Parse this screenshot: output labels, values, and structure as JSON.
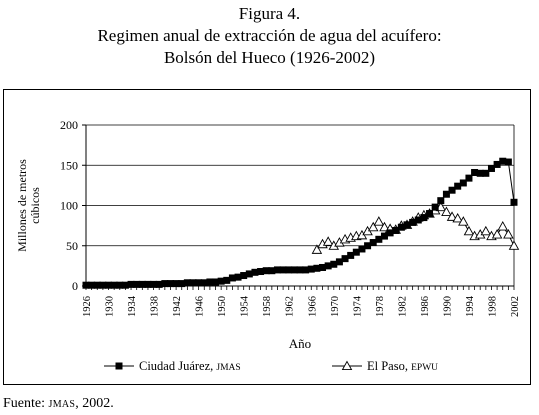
{
  "figure": {
    "label": "Figura 4.",
    "title_line1": "Regimen anual de extracción de agua del acuífero:",
    "title_line2": "Bolsón del Hueco (1926-2002)"
  },
  "source": {
    "prefix": "Fuente: ",
    "org": "JMAS",
    "suffix": ", 2002."
  },
  "chart_data": {
    "type": "line",
    "xlabel": "Año",
    "ylabel_line1": "Millones de metros",
    "ylabel_line2": "cúbicos",
    "xlim": [
      1926,
      2002
    ],
    "ylim": [
      0,
      200
    ],
    "yticks": [
      0,
      50,
      100,
      150,
      200
    ],
    "xticks": [
      1926,
      1930,
      1934,
      1938,
      1942,
      1946,
      1950,
      1954,
      1958,
      1962,
      1966,
      1970,
      1974,
      1978,
      1982,
      1986,
      1990,
      1994,
      1998,
      2002
    ],
    "grid": "horizontal",
    "legend": "bottom",
    "series": [
      {
        "name": "Ciudad Juárez,",
        "name_sc": "JMAS",
        "marker": "square",
        "color": "#000000",
        "x": [
          1926,
          1927,
          1928,
          1929,
          1930,
          1931,
          1932,
          1933,
          1934,
          1935,
          1936,
          1937,
          1938,
          1939,
          1940,
          1941,
          1942,
          1943,
          1944,
          1945,
          1946,
          1947,
          1948,
          1949,
          1950,
          1951,
          1952,
          1953,
          1954,
          1955,
          1956,
          1957,
          1958,
          1959,
          1960,
          1961,
          1962,
          1963,
          1964,
          1965,
          1966,
          1967,
          1968,
          1969,
          1970,
          1971,
          1972,
          1973,
          1974,
          1975,
          1976,
          1977,
          1978,
          1979,
          1980,
          1981,
          1982,
          1983,
          1984,
          1985,
          1986,
          1987,
          1988,
          1989,
          1990,
          1991,
          1992,
          1993,
          1994,
          1995,
          1996,
          1997,
          1998,
          1999,
          2000,
          2001,
          2002
        ],
        "y": [
          1,
          1,
          1,
          1,
          1,
          1,
          1,
          1,
          2,
          2,
          2,
          2,
          2,
          2,
          3,
          3,
          3,
          3,
          4,
          4,
          4,
          4,
          5,
          5,
          6,
          7,
          10,
          11,
          13,
          15,
          17,
          18,
          19,
          19,
          20,
          20,
          20,
          20,
          20,
          20,
          21,
          22,
          23,
          25,
          27,
          30,
          34,
          38,
          42,
          46,
          50,
          54,
          58,
          62,
          66,
          69,
          73,
          76,
          79,
          82,
          85,
          90,
          98,
          106,
          114,
          119,
          124,
          128,
          134,
          141,
          140,
          140,
          146,
          151,
          155,
          154,
          104
        ]
      },
      {
        "name": "El Paso,",
        "name_sc": "EPWU",
        "marker": "triangle",
        "color": "#000000",
        "x": [
          1967,
          1968,
          1969,
          1970,
          1971,
          1972,
          1973,
          1974,
          1975,
          1976,
          1977,
          1978,
          1979,
          1980,
          1981,
          1982,
          1983,
          1984,
          1985,
          1986,
          1987,
          1988,
          1989,
          1990,
          1991,
          1992,
          1993,
          1994,
          1995,
          1996,
          1997,
          1998,
          1999,
          2000,
          2001,
          2002
        ],
        "y": [
          45,
          52,
          55,
          50,
          54,
          58,
          60,
          62,
          63,
          68,
          73,
          80,
          73,
          71,
          70,
          75,
          76,
          80,
          85,
          88,
          90,
          94,
          98,
          92,
          86,
          84,
          80,
          68,
          62,
          64,
          68,
          62,
          64,
          74,
          64,
          50
        ]
      }
    ]
  }
}
